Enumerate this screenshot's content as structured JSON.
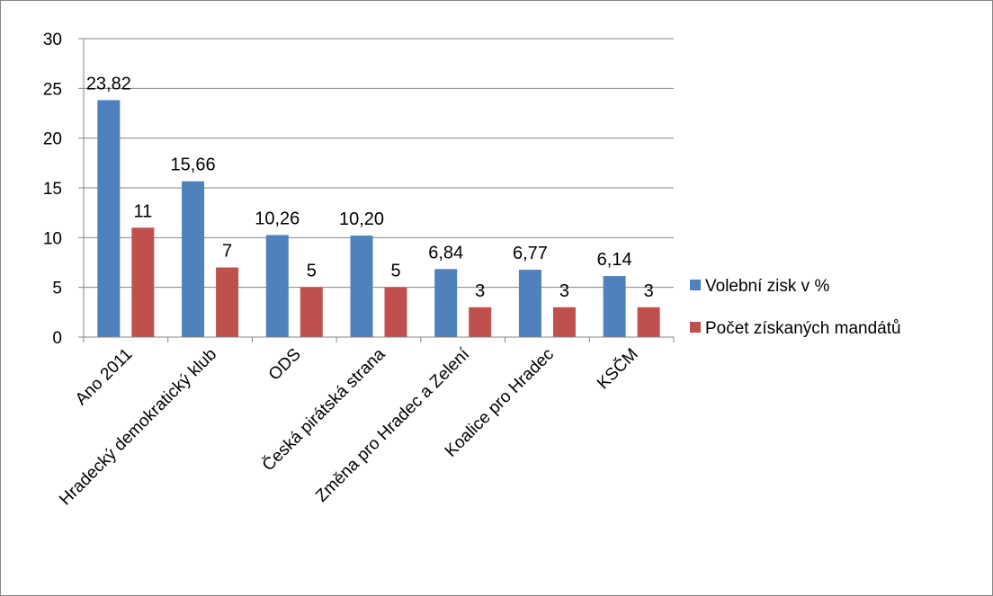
{
  "chart_data": {
    "type": "bar",
    "categories": [
      "Ano 2011",
      "Hradecký demokratický klub",
      "ODS",
      "Česká pirátská strana",
      "Změna pro Hradec a Zelení",
      "Koalice pro Hradec",
      "KSČM"
    ],
    "series": [
      {
        "name": "Volební zisk v %",
        "color": "#4f81bd",
        "values": [
          23.82,
          15.66,
          10.26,
          10.2,
          6.84,
          6.77,
          6.14
        ],
        "labels": [
          "23,82",
          "15,66",
          "10,26",
          "10,20",
          "6,84",
          "6,77",
          "6,14"
        ]
      },
      {
        "name": "Počet získaných mandátů",
        "color": "#c0504d",
        "values": [
          11,
          7,
          5,
          5,
          3,
          3,
          3
        ],
        "labels": [
          "11",
          "7",
          "5",
          "5",
          "3",
          "3",
          "3"
        ]
      }
    ],
    "ylim": [
      0,
      30
    ],
    "yticks": [
      0,
      5,
      10,
      15,
      20,
      25,
      30
    ],
    "grid": true,
    "legend": "right",
    "title": "",
    "xlabel": "",
    "ylabel": ""
  }
}
